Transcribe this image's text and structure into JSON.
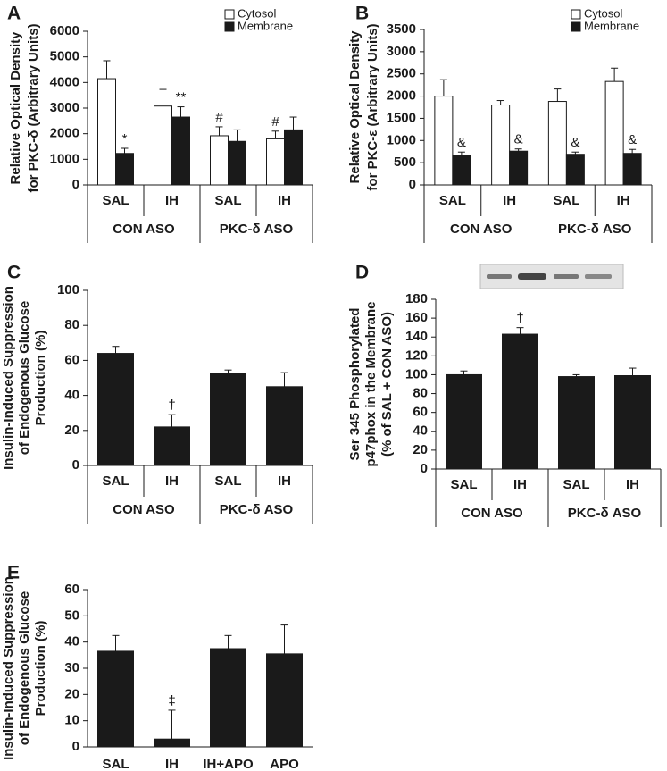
{
  "chart_data": [
    {
      "type": "bar",
      "label": "A",
      "ylabel": [
        "Relative Optical Density",
        "for PKC-δ (Arbitrary Units)"
      ],
      "categories": [
        "SAL",
        "IH",
        "SAL",
        "IH"
      ],
      "groups": [
        "CON ASO",
        "PKC-δ ASO"
      ],
      "series": [
        {
          "name": "Cytosol",
          "color": "#ffffff",
          "values": [
            4150,
            3080,
            1920,
            1800
          ],
          "errors": [
            700,
            650,
            350,
            300
          ],
          "markers": [
            null,
            null,
            "#",
            "#"
          ]
        },
        {
          "name": "Membrane",
          "color": "#1a1a1a",
          "values": [
            1230,
            2650,
            1700,
            2150
          ],
          "errors": [
            200,
            400,
            450,
            500
          ],
          "markers": [
            "*",
            "**",
            null,
            null
          ]
        }
      ],
      "ylim": [
        0,
        6000
      ],
      "yticks": [
        0,
        1000,
        2000,
        3000,
        4000,
        5000,
        6000
      ],
      "legend": "upper right"
    },
    {
      "type": "bar",
      "label": "B",
      "ylabel": [
        "Relative Optical Density",
        "for PKC-ε (Arbitrary Units)"
      ],
      "categories": [
        "SAL",
        "IH",
        "SAL",
        "IH"
      ],
      "groups": [
        "CON ASO",
        "PKC-δ ASO"
      ],
      "series": [
        {
          "name": "Cytosol",
          "color": "#ffffff",
          "values": [
            2000,
            1800,
            1880,
            2330
          ],
          "errors": [
            370,
            100,
            280,
            300
          ],
          "markers": [
            null,
            null,
            null,
            null
          ]
        },
        {
          "name": "Membrane",
          "color": "#1a1a1a",
          "values": [
            670,
            760,
            690,
            710
          ],
          "errors": [
            70,
            50,
            50,
            90
          ],
          "markers": [
            "&",
            "&",
            "&",
            "&"
          ]
        }
      ],
      "ylim": [
        0,
        3500
      ],
      "yticks": [
        0,
        500,
        1000,
        1500,
        2000,
        2500,
        3000,
        3500
      ],
      "legend": "upper right"
    },
    {
      "type": "bar",
      "label": "C",
      "ylabel": [
        "Insulin-Induced Suppression",
        "of Endogenous Glucose",
        "Production (%)"
      ],
      "categories": [
        "SAL",
        "IH",
        "SAL",
        "IH"
      ],
      "groups": [
        "CON ASO",
        "PKC-δ ASO"
      ],
      "series": [
        {
          "color": "#1a1a1a",
          "values": [
            64,
            22,
            52.5,
            45
          ],
          "errors": [
            4,
            7,
            2,
            8
          ],
          "markers": [
            null,
            "†",
            null,
            null
          ]
        }
      ],
      "ylim": [
        0,
        100
      ],
      "yticks": [
        0,
        20,
        40,
        60,
        80,
        100
      ]
    },
    {
      "type": "bar",
      "label": "D",
      "ylabel": [
        "Ser 345 Phosphorylated",
        "p47phox in the Membrane",
        "(% of SAL + CON ASO)"
      ],
      "categories": [
        "SAL",
        "IH",
        "SAL",
        "IH"
      ],
      "groups": [
        "CON ASO",
        "PKC-δ ASO"
      ],
      "series": [
        {
          "color": "#1a1a1a",
          "values": [
            100,
            143,
            98,
            99
          ],
          "errors": [
            4,
            7,
            2,
            8
          ],
          "markers": [
            null,
            "†",
            null,
            null
          ]
        }
      ],
      "ylim": [
        0,
        180
      ],
      "yticks": [
        0,
        20,
        40,
        60,
        80,
        100,
        120,
        140,
        160,
        180
      ]
    },
    {
      "type": "bar",
      "label": "E",
      "ylabel": [
        "Insulin-Induced  Suppression",
        "of Endogenous Glucose",
        "Production (%)"
      ],
      "categories": [
        "SAL",
        "IH",
        "IH+APO",
        "APO"
      ],
      "series": [
        {
          "color": "#1a1a1a",
          "values": [
            36.5,
            3,
            37.5,
            35.5
          ],
          "errors": [
            6,
            11,
            5,
            11
          ],
          "markers": [
            null,
            "‡",
            null,
            null
          ]
        }
      ],
      "ylim": [
        0,
        60
      ],
      "yticks": [
        0,
        10,
        20,
        30,
        40,
        50,
        60
      ]
    }
  ]
}
